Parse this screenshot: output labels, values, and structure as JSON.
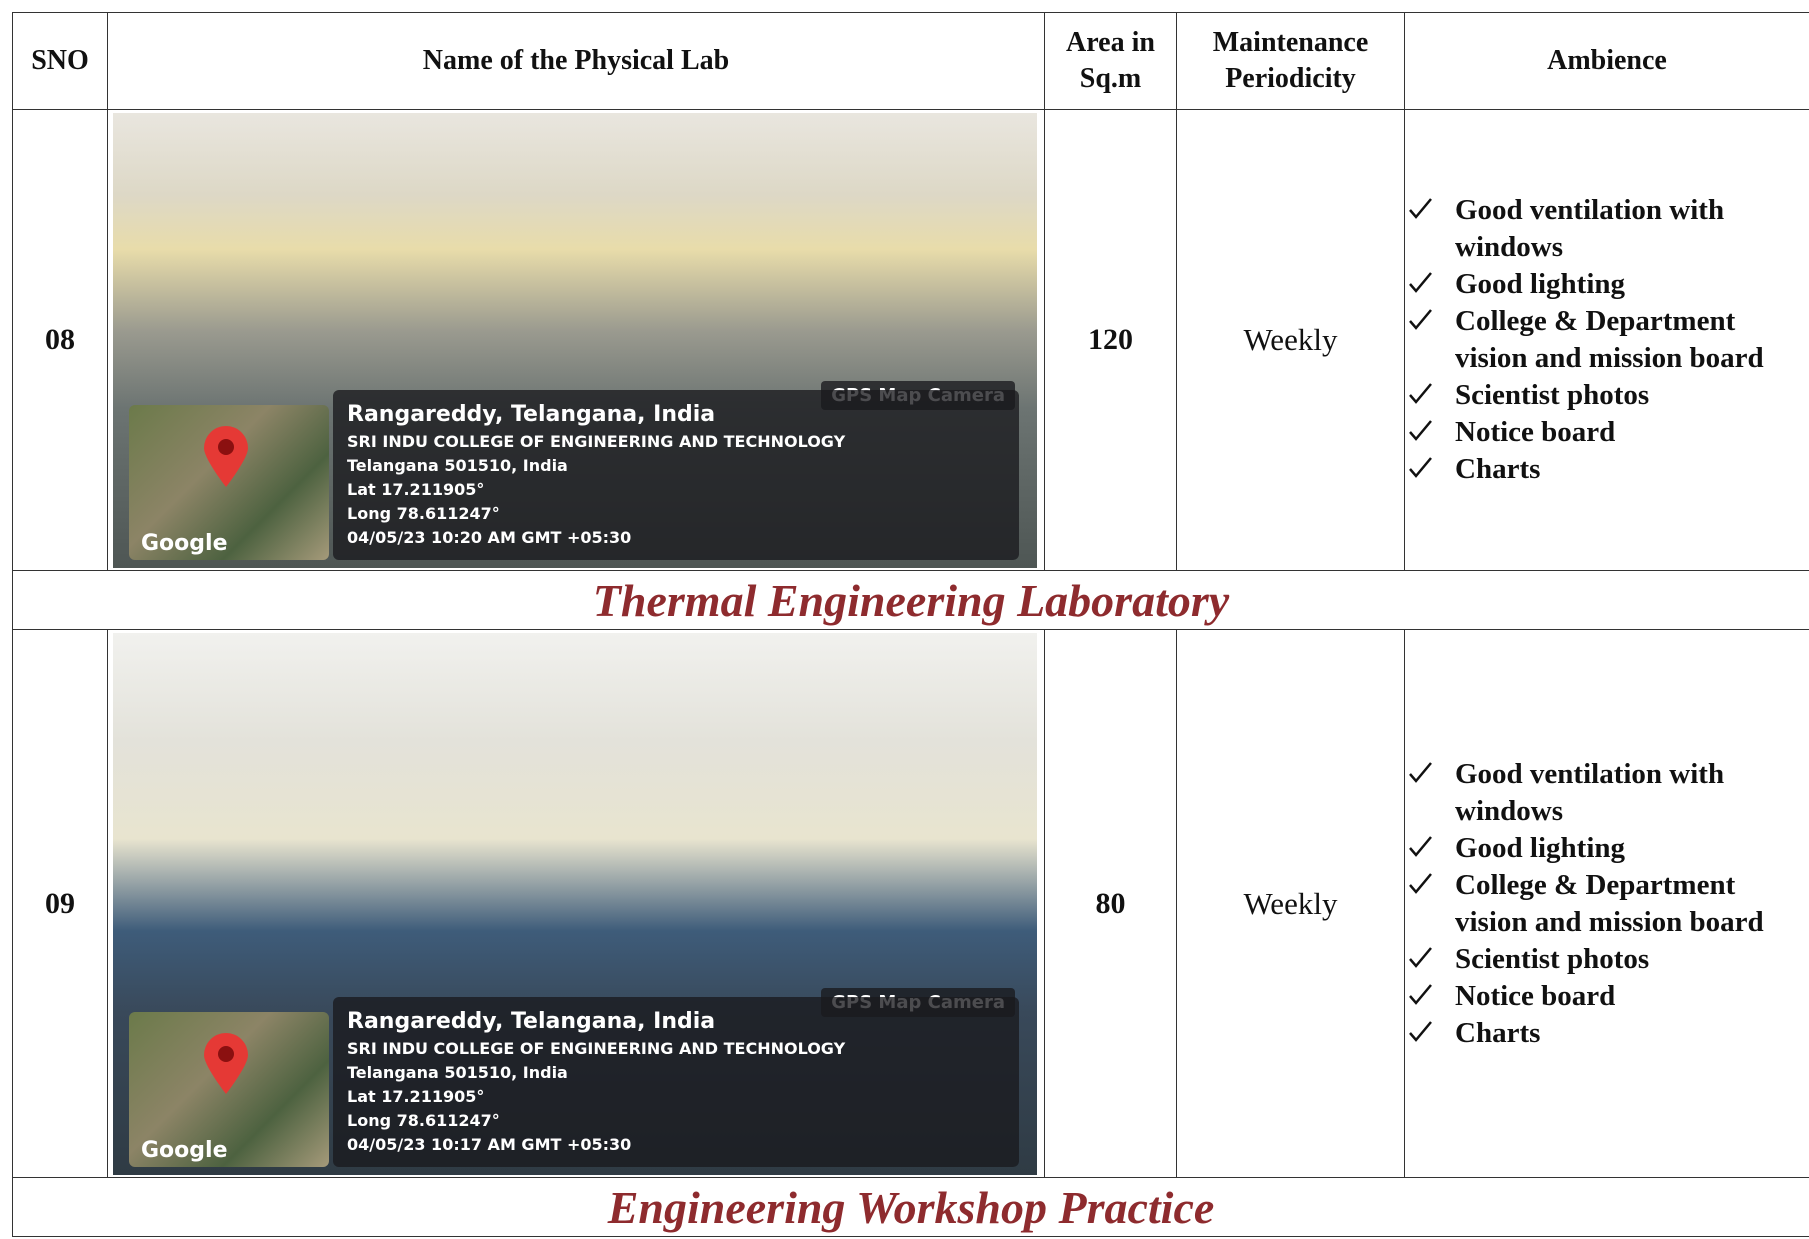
{
  "header": {
    "sno": "SNO",
    "name": "Name of the Physical Lab",
    "area": "Area in Sq.m",
    "maintenance": "Maintenance Periodicity",
    "ambience": "Ambience"
  },
  "rows": [
    {
      "sno": "08",
      "area": "120",
      "maintenance": "Weekly",
      "ambience": [
        "Good ventilation with windows",
        "Good lighting",
        "College & Department vision and mission board",
        "Scientist photos",
        "Notice board",
        "Charts"
      ],
      "photo": {
        "camera": "GPS Map Camera",
        "location": "Rangareddy, Telangana, India",
        "institution": "SRI INDU COLLEGE OF ENGINEERING AND TECHNOLOGY",
        "address": "Telangana 501510, India",
        "lat": "Lat 17.211905°",
        "long": "Long 78.611247°",
        "timestamp": "04/05/23 10:20 AM GMT +05:30",
        "map_label": "Google"
      },
      "caption": "Thermal Engineering Laboratory"
    },
    {
      "sno": "09",
      "area": "80",
      "maintenance": "Weekly",
      "ambience": [
        "Good ventilation with windows",
        "Good lighting",
        "College & Department vision and mission board",
        "Scientist photos",
        "Notice board",
        "Charts"
      ],
      "photo": {
        "camera": "GPS Map Camera",
        "location": "Rangareddy, Telangana, India",
        "institution": "SRI INDU COLLEGE OF ENGINEERING AND TECHNOLOGY",
        "address": "Telangana 501510, India",
        "lat": "Lat 17.211905°",
        "long": "Long 78.611247°",
        "timestamp": "04/05/23 10:17 AM GMT +05:30",
        "map_label": "Google"
      },
      "caption": "Engineering Workshop Practice"
    }
  ]
}
